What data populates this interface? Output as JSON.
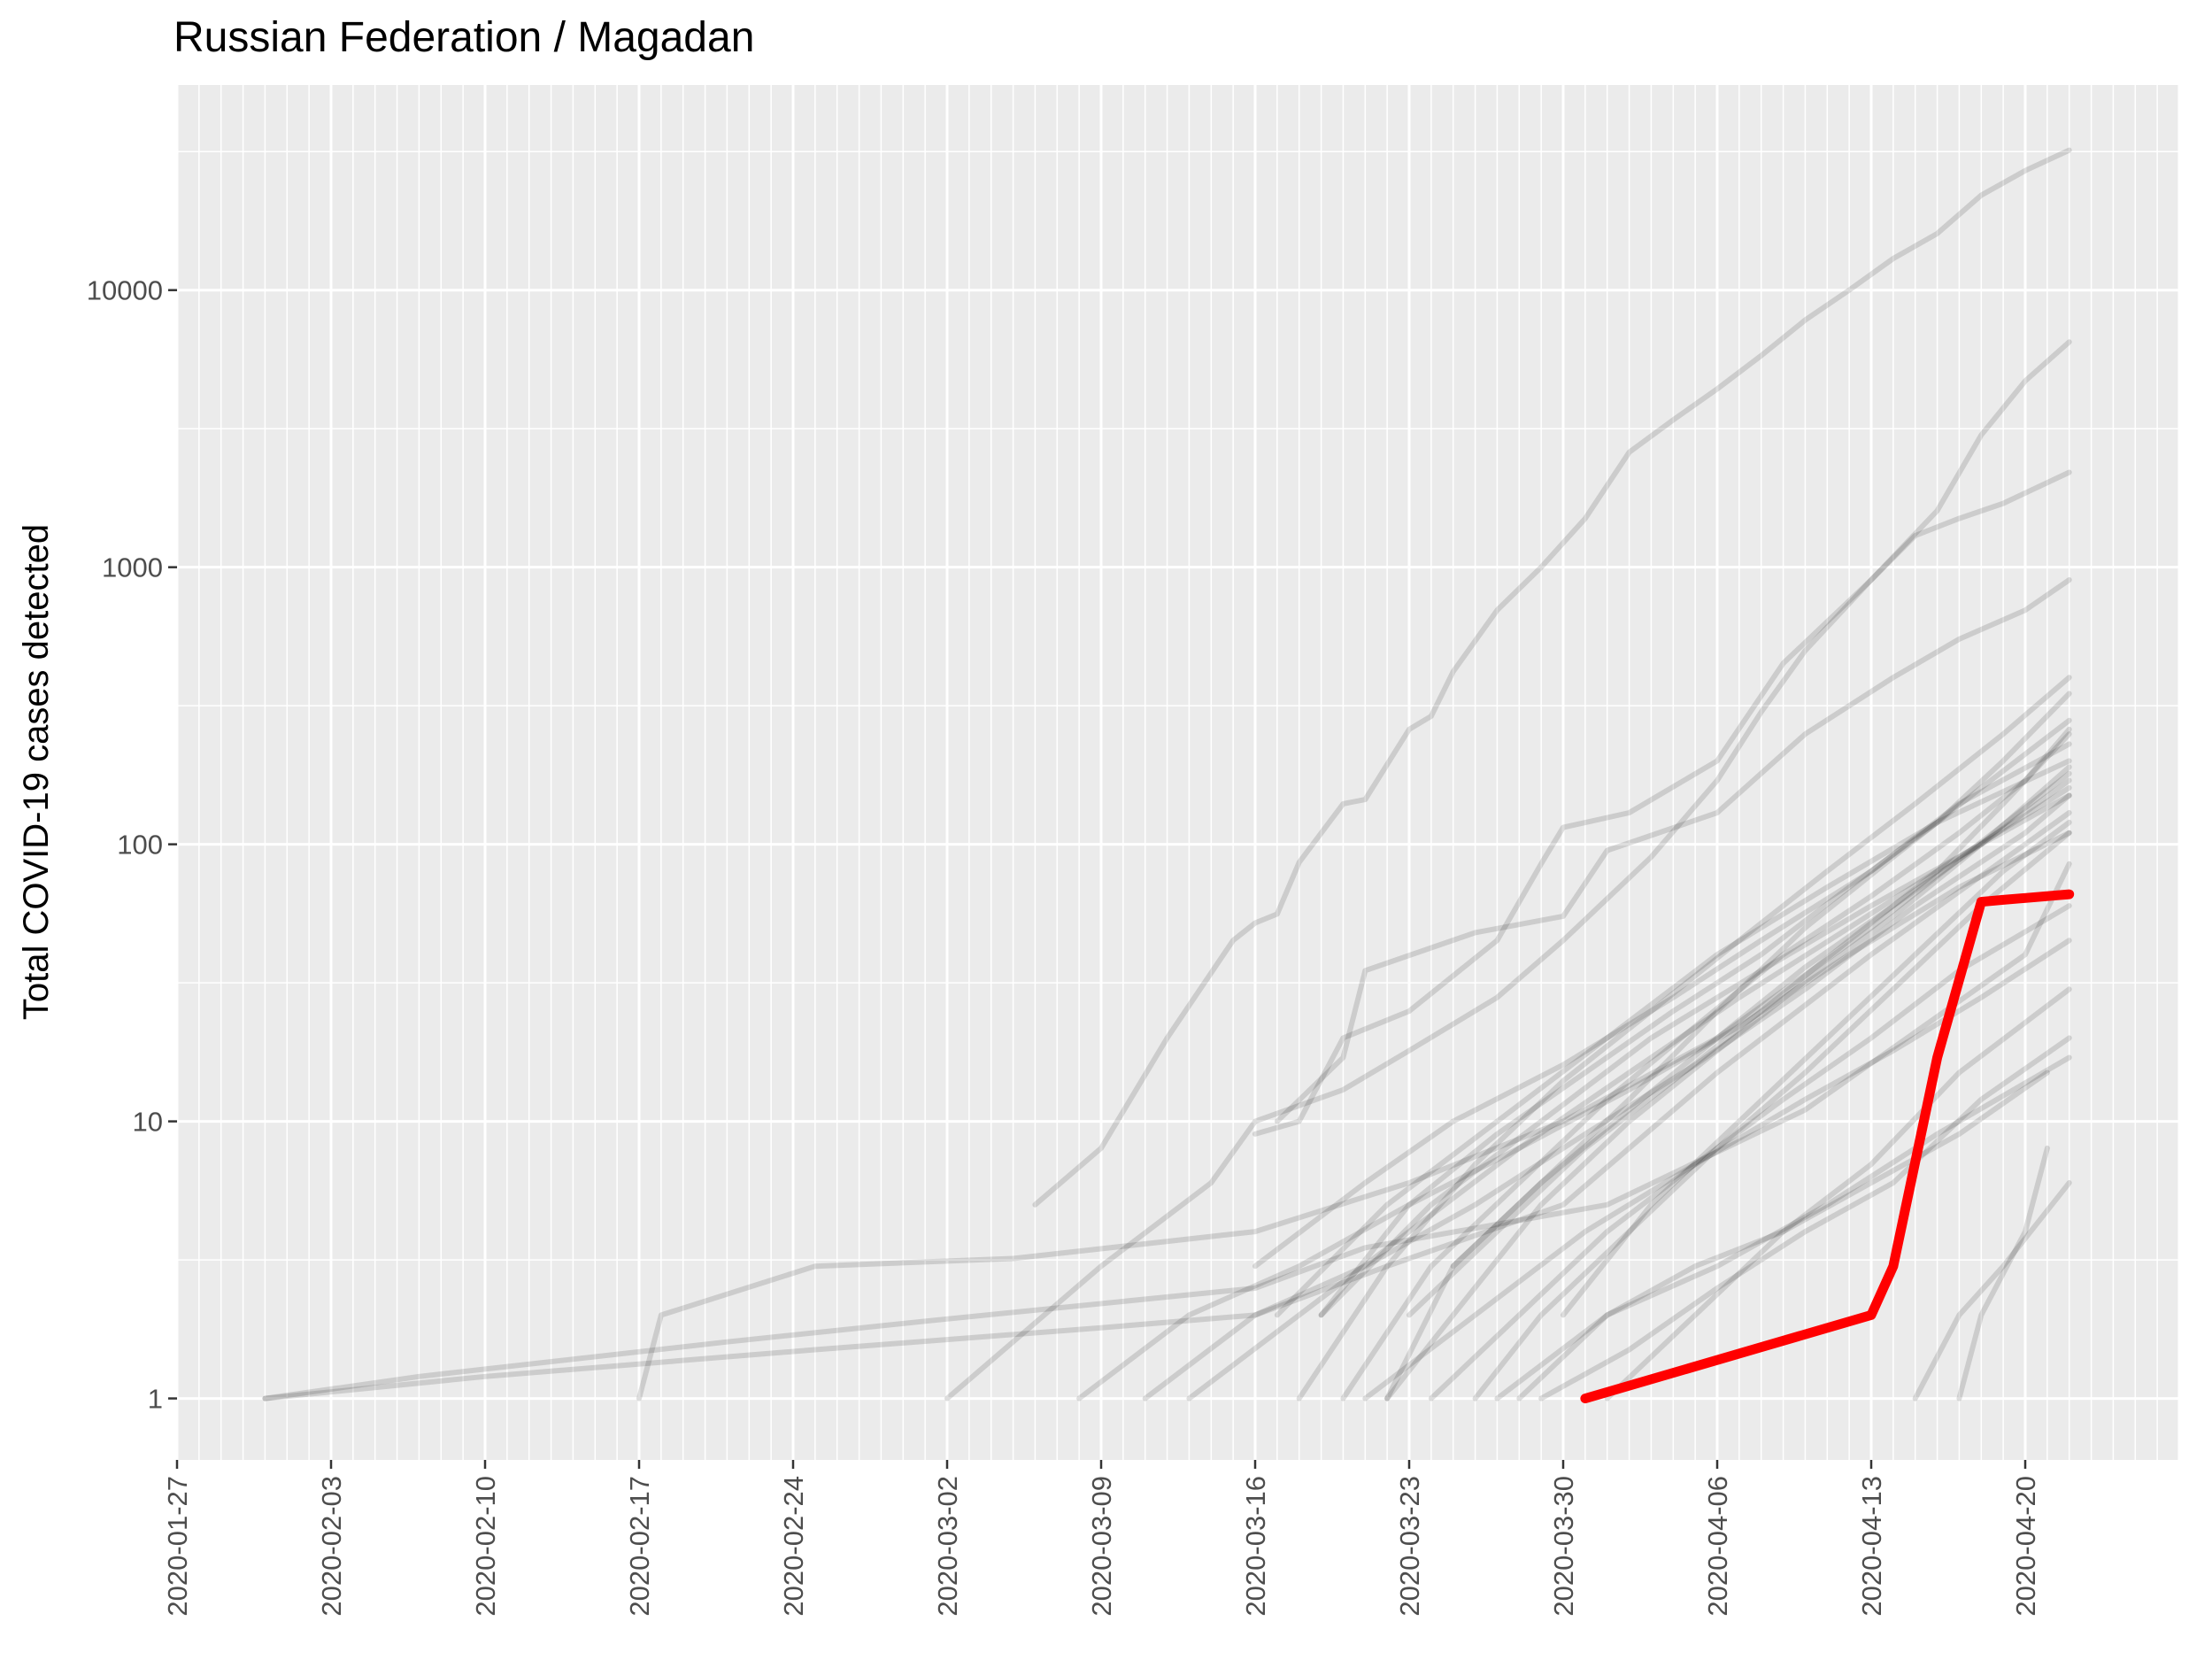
{
  "chart_data": {
    "type": "line",
    "title": "Russian Federation / Magadan",
    "xlabel": "",
    "ylabel": "Total COVID-19 cases detected",
    "y_scale": "log10",
    "ylim": [
      0.6,
      55000
    ],
    "y_ticks": [
      1,
      10,
      100,
      1000,
      10000
    ],
    "y_tick_labels": [
      "1",
      "10",
      "100",
      "1000",
      "10000"
    ],
    "x_range": [
      "2020-01-27",
      "2020-04-27"
    ],
    "x_tick_labels": [
      "2020-01-27",
      "2020-02-03",
      "2020-02-10",
      "2020-02-17",
      "2020-02-24",
      "2020-03-02",
      "2020-03-09",
      "2020-03-16",
      "2020-03-23",
      "2020-03-30",
      "2020-04-06",
      "2020-04-13",
      "2020-04-20"
    ],
    "grid": true,
    "legend": "none",
    "highlight": {
      "name": "Magadan",
      "color": "#ff0000",
      "x": [
        "2020-03-31",
        "2020-04-13",
        "2020-04-14",
        "2020-04-16",
        "2020-04-18",
        "2020-04-19",
        "2020-04-22"
      ],
      "y": [
        1,
        2,
        3,
        17,
        62,
        63,
        66
      ]
    },
    "background_series_color": "#000000",
    "background_series": [
      {
        "x": [
          "2020-01-31",
          "2020-02-07",
          "2020-02-21",
          "2020-03-01",
          "2020-03-16",
          "2020-03-21",
          "2020-04-01",
          "2020-04-10",
          "2020-04-20",
          "2020-04-22"
        ],
        "y": [
          1,
          1.2,
          1.6,
          1.9,
          2.5,
          3.5,
          5,
          11,
          40,
          85
        ]
      },
      {
        "x": [
          "2020-01-31",
          "2020-02-10",
          "2020-02-25",
          "2020-03-09",
          "2020-03-16",
          "2020-03-22",
          "2020-03-30",
          "2020-04-06",
          "2020-04-13",
          "2020-04-22"
        ],
        "y": [
          1,
          1.2,
          1.5,
          1.8,
          2,
          3,
          5,
          15,
          40,
          130
        ]
      },
      {
        "x": [
          "2020-02-17",
          "2020-02-18",
          "2020-02-25",
          "2020-03-05",
          "2020-03-16",
          "2020-03-23",
          "2020-03-30",
          "2020-04-06",
          "2020-04-13",
          "2020-04-22"
        ],
        "y": [
          1,
          2,
          3,
          3.2,
          4,
          6,
          10,
          20,
          50,
          180
        ]
      },
      {
        "x": [
          "2020-03-02",
          "2020-03-09",
          "2020-03-14",
          "2020-03-16",
          "2020-03-20",
          "2020-03-23",
          "2020-03-27",
          "2020-03-30",
          "2020-04-03",
          "2020-04-06",
          "2020-04-08",
          "2020-04-10",
          "2020-04-13",
          "2020-04-16",
          "2020-04-18",
          "2020-04-20",
          "2020-04-22"
        ],
        "y": [
          1,
          3,
          6,
          10,
          13,
          18,
          28,
          45,
          90,
          170,
          300,
          500,
          900,
          1600,
          3000,
          4700,
          6500
        ]
      },
      {
        "x": [
          "2020-03-06",
          "2020-03-09",
          "2020-03-12",
          "2020-03-15",
          "2020-03-16",
          "2020-03-17",
          "2020-03-18",
          "2020-03-20",
          "2020-03-21",
          "2020-03-23",
          "2020-03-24",
          "2020-03-25",
          "2020-03-27",
          "2020-03-29",
          "2020-03-31",
          "2020-04-02",
          "2020-04-04",
          "2020-04-06",
          "2020-04-08",
          "2020-04-10",
          "2020-04-12",
          "2020-04-14",
          "2020-04-16",
          "2020-04-18",
          "2020-04-20",
          "2020-04-22"
        ],
        "y": [
          5,
          8,
          20,
          45,
          52,
          56,
          86,
          140,
          145,
          260,
          290,
          420,
          700,
          1000,
          1500,
          2600,
          3400,
          4400,
          5800,
          7800,
          10000,
          13000,
          16000,
          22000,
          27000,
          32000
        ]
      },
      {
        "x": [
          "2020-03-16",
          "2020-03-18",
          "2020-03-20",
          "2020-03-23",
          "2020-03-27",
          "2020-03-29",
          "2020-03-30",
          "2020-04-02",
          "2020-04-06",
          "2020-04-09",
          "2020-04-13",
          "2020-04-15",
          "2020-04-17",
          "2020-04-19",
          "2020-04-22"
        ],
        "y": [
          9,
          10,
          20,
          25,
          45,
          85,
          115,
          130,
          200,
          450,
          900,
          1300,
          1500,
          1700,
          2200
        ]
      },
      {
        "x": [
          "2020-03-17",
          "2020-03-20",
          "2020-03-21",
          "2020-03-26",
          "2020-03-30",
          "2020-04-01",
          "2020-04-06",
          "2020-04-10",
          "2020-04-14",
          "2020-04-17",
          "2020-04-20",
          "2020-04-22"
        ],
        "y": [
          10,
          17,
          35,
          48,
          55,
          95,
          130,
          250,
          400,
          550,
          700,
          900
        ]
      },
      {
        "x": [
          "2020-03-19",
          "2020-03-23",
          "2020-03-27",
          "2020-03-31",
          "2020-04-04",
          "2020-04-08",
          "2020-04-12",
          "2020-04-16",
          "2020-04-19",
          "2020-04-22"
        ],
        "y": [
          2,
          5,
          9,
          15,
          25,
          40,
          70,
          120,
          200,
          350
        ]
      },
      {
        "x": [
          "2020-03-20",
          "2020-03-24",
          "2020-03-28",
          "2020-04-01",
          "2020-04-05",
          "2020-04-09",
          "2020-04-13",
          "2020-04-17",
          "2020-04-20",
          "2020-04-22"
        ],
        "y": [
          1,
          3,
          6,
          12,
          22,
          40,
          65,
          110,
          170,
          260
        ]
      },
      {
        "x": [
          "2020-03-22",
          "2020-03-25",
          "2020-03-29",
          "2020-04-02",
          "2020-04-06",
          "2020-04-10",
          "2020-04-14",
          "2020-04-18",
          "2020-04-22"
        ],
        "y": [
          1,
          2,
          5,
          10,
          18,
          32,
          55,
          100,
          190
        ]
      },
      {
        "x": [
          "2020-03-18",
          "2020-03-22",
          "2020-03-26",
          "2020-03-30",
          "2020-04-03",
          "2020-04-07",
          "2020-04-11",
          "2020-04-15",
          "2020-04-19",
          "2020-04-22"
        ],
        "y": [
          1,
          3,
          7,
          14,
          25,
          45,
          80,
          140,
          250,
          400
        ]
      },
      {
        "x": [
          "2020-03-24",
          "2020-03-28",
          "2020-04-01",
          "2020-04-05",
          "2020-04-09",
          "2020-04-13",
          "2020-04-17",
          "2020-04-22"
        ],
        "y": [
          1,
          2,
          4,
          7,
          12,
          20,
          35,
          60
        ]
      },
      {
        "x": [
          "2020-03-16",
          "2020-03-21",
          "2020-03-25",
          "2020-03-30",
          "2020-04-04",
          "2020-04-08",
          "2020-04-13",
          "2020-04-17",
          "2020-04-22"
        ],
        "y": [
          3,
          6,
          10,
          16,
          28,
          45,
          80,
          140,
          230
        ]
      },
      {
        "x": [
          "2020-03-26",
          "2020-03-29",
          "2020-04-02",
          "2020-04-06",
          "2020-04-10",
          "2020-04-14",
          "2020-04-18",
          "2020-04-22"
        ],
        "y": [
          1,
          2,
          4,
          8,
          15,
          30,
          60,
          110
        ]
      },
      {
        "x": [
          "2020-03-21",
          "2020-03-26",
          "2020-03-31",
          "2020-04-05",
          "2020-04-10",
          "2020-04-14",
          "2020-04-18",
          "2020-04-22"
        ],
        "y": [
          1,
          2,
          4,
          7,
          12,
          18,
          28,
          45
        ]
      },
      {
        "x": [
          "2020-03-29",
          "2020-04-02",
          "2020-04-06",
          "2020-04-10",
          "2020-04-14",
          "2020-04-18",
          "2020-04-22"
        ],
        "y": [
          1,
          1.5,
          2.5,
          4,
          6,
          12,
          20
        ]
      },
      {
        "x": [
          "2020-03-13",
          "2020-03-18",
          "2020-03-23",
          "2020-03-28",
          "2020-04-02",
          "2020-04-07",
          "2020-04-12",
          "2020-04-17",
          "2020-04-22"
        ],
        "y": [
          1,
          2,
          4,
          8,
          15,
          28,
          50,
          90,
          160
        ]
      },
      {
        "x": [
          "2020-03-11",
          "2020-03-16",
          "2020-03-21",
          "2020-03-26",
          "2020-03-31",
          "2020-04-05",
          "2020-04-10",
          "2020-04-15",
          "2020-04-20",
          "2020-04-22"
        ],
        "y": [
          1,
          2,
          3,
          5,
          9,
          16,
          30,
          60,
          110,
          150
        ]
      },
      {
        "x": [
          "2020-03-23",
          "2020-03-27",
          "2020-03-31",
          "2020-04-04",
          "2020-04-08",
          "2020-04-12",
          "2020-04-16",
          "2020-04-19",
          "2020-04-22"
        ],
        "y": [
          2,
          4,
          8,
          14,
          25,
          45,
          80,
          140,
          250
        ]
      },
      {
        "x": [
          "2020-03-19",
          "2020-03-24",
          "2020-03-29",
          "2020-04-03",
          "2020-04-08",
          "2020-04-13",
          "2020-04-18",
          "2020-04-22"
        ],
        "y": [
          2,
          5,
          10,
          20,
          35,
          60,
          100,
          150
        ]
      },
      {
        "x": [
          "2020-04-01",
          "2020-04-05",
          "2020-04-09",
          "2020-04-13",
          "2020-04-17",
          "2020-04-22"
        ],
        "y": [
          1,
          2,
          4,
          7,
          15,
          30
        ]
      },
      {
        "x": [
          "2020-03-27",
          "2020-04-01",
          "2020-04-06",
          "2020-04-11",
          "2020-04-16",
          "2020-04-22"
        ],
        "y": [
          1,
          2,
          3,
          5,
          9,
          17
        ]
      },
      {
        "x": [
          "2020-03-17",
          "2020-03-22",
          "2020-03-27",
          "2020-04-01",
          "2020-04-06",
          "2020-04-11",
          "2020-04-16",
          "2020-04-22"
        ],
        "y": [
          2,
          5,
          10,
          20,
          40,
          70,
          120,
          200
        ]
      },
      {
        "x": [
          "2020-03-30",
          "2020-04-03",
          "2020-04-07",
          "2020-04-11",
          "2020-04-15",
          "2020-04-19",
          "2020-04-22"
        ],
        "y": [
          2,
          5,
          10,
          20,
          40,
          80,
          120
        ]
      },
      {
        "x": [
          "2020-03-25",
          "2020-03-29",
          "2020-04-02",
          "2020-04-06",
          "2020-04-10",
          "2020-04-14",
          "2020-04-18",
          "2020-04-22"
        ],
        "y": [
          3,
          6,
          11,
          20,
          36,
          60,
          100,
          170
        ]
      },
      {
        "x": [
          "2020-03-08",
          "2020-03-13",
          "2020-03-18",
          "2020-03-23",
          "2020-03-28",
          "2020-04-02",
          "2020-04-07",
          "2020-04-12",
          "2020-04-17",
          "2020-04-22"
        ],
        "y": [
          1,
          2,
          3,
          5,
          8,
          13,
          22,
          40,
          70,
          110
        ]
      },
      {
        "x": [
          "2020-03-22",
          "2020-03-25",
          "2020-03-29",
          "2020-04-02",
          "2020-04-06",
          "2020-04-10",
          "2020-04-14",
          "2020-04-18",
          "2020-04-22"
        ],
        "y": [
          1,
          3,
          6,
          12,
          25,
          50,
          90,
          160,
          280
        ]
      },
      {
        "x": [
          "2020-04-15",
          "2020-04-17",
          "2020-04-19",
          "2020-04-22"
        ],
        "y": [
          1,
          2,
          3,
          6
        ]
      },
      {
        "x": [
          "2020-04-17",
          "2020-04-18",
          "2020-04-20",
          "2020-04-21"
        ],
        "y": [
          1,
          2,
          4,
          8
        ]
      },
      {
        "x": [
          "2020-03-28",
          "2020-04-01",
          "2020-04-05",
          "2020-04-09",
          "2020-04-13",
          "2020-04-17",
          "2020-04-21"
        ],
        "y": [
          1,
          2,
          3,
          4,
          6,
          9,
          15
        ]
      }
    ]
  }
}
